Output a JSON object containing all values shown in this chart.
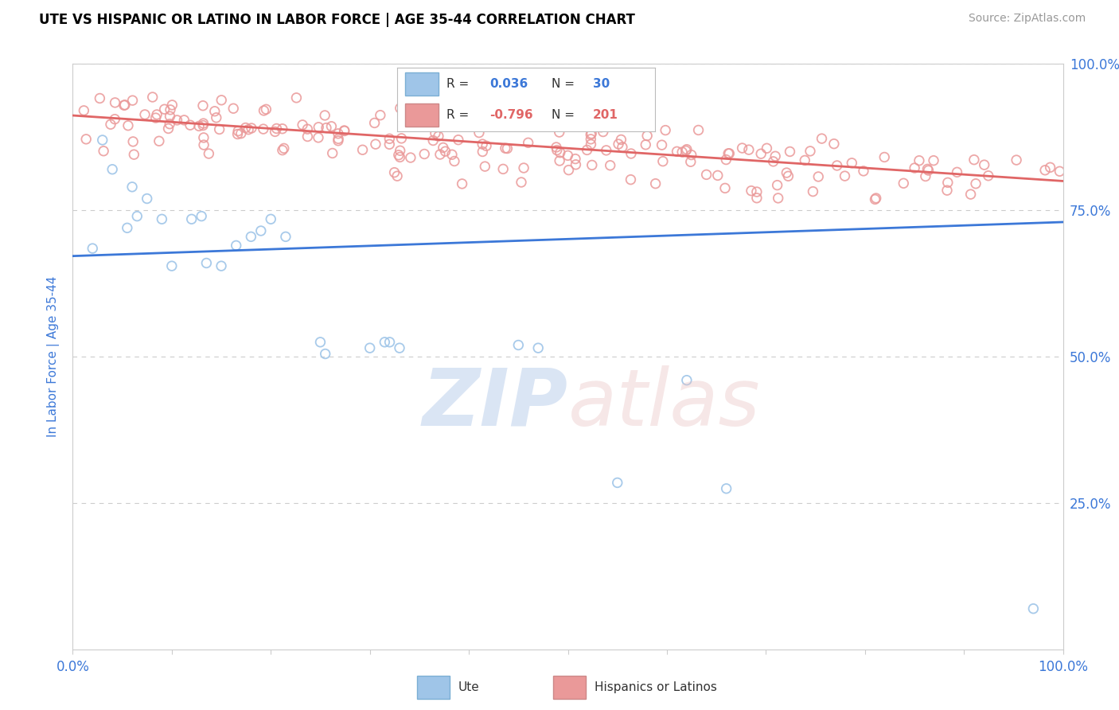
{
  "title": "UTE VS HISPANIC OR LATINO IN LABOR FORCE | AGE 35-44 CORRELATION CHART",
  "source": "Source: ZipAtlas.com",
  "ylabel": "In Labor Force | Age 35-44",
  "xlim": [
    0,
    1
  ],
  "ylim": [
    0,
    1
  ],
  "yticks": [
    0,
    0.25,
    0.5,
    0.75,
    1.0
  ],
  "legend_r1": "0.036",
  "legend_n1": "30",
  "legend_r2": "-0.796",
  "legend_n2": "201",
  "blue_scatter_color": "#9fc5e8",
  "pink_scatter_color": "#ea9999",
  "blue_line_color": "#3c78d8",
  "pink_line_color": "#e06666",
  "bg_color": "#ffffff",
  "grid_color": "#cccccc",
  "title_color": "#000000",
  "source_color": "#999999",
  "axis_tick_color": "#3c78d8",
  "blue_scatter_x": [
    0.02,
    0.03,
    0.04,
    0.055,
    0.06,
    0.065,
    0.075,
    0.09,
    0.1,
    0.12,
    0.13,
    0.135,
    0.15,
    0.165,
    0.18,
    0.19,
    0.2,
    0.215,
    0.25,
    0.255,
    0.3,
    0.315,
    0.32,
    0.33,
    0.45,
    0.47,
    0.55,
    0.62,
    0.66,
    0.97
  ],
  "blue_scatter_y": [
    0.685,
    0.87,
    0.82,
    0.72,
    0.79,
    0.74,
    0.77,
    0.735,
    0.655,
    0.735,
    0.74,
    0.66,
    0.655,
    0.69,
    0.705,
    0.715,
    0.735,
    0.705,
    0.525,
    0.505,
    0.515,
    0.525,
    0.525,
    0.515,
    0.52,
    0.515,
    0.285,
    0.46,
    0.275,
    0.07
  ],
  "pink_line_y0": 0.912,
  "pink_line_y1": 0.8,
  "blue_line_y0": 0.672,
  "blue_line_y1": 0.73,
  "watermark_zip_color": "#aec6e8",
  "watermark_atlas_color": "#e8c0c0"
}
